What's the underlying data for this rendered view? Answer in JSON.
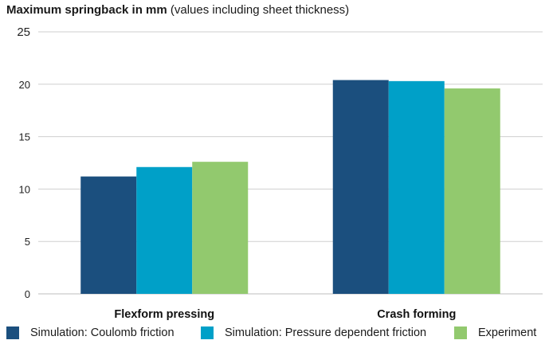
{
  "chart_data": {
    "type": "bar",
    "title": "Maximum springback in mm",
    "subtitle": "(values including sheet thickness)",
    "categories": [
      "Flexform pressing",
      "Crash forming"
    ],
    "series": [
      {
        "name": "Simulation: Coulomb friction",
        "color": "#1b4f7e",
        "values": [
          11.2,
          20.4
        ]
      },
      {
        "name": "Simulation: Pressure dependent friction",
        "color": "#00a0c8",
        "values": [
          12.1,
          20.3
        ]
      },
      {
        "name": "Experiment",
        "color": "#92c96e",
        "values": [
          12.6,
          19.6
        ]
      }
    ],
    "y_ticks": [
      0,
      5,
      10,
      15,
      20,
      25
    ],
    "ylim": [
      0,
      25
    ],
    "grid": true,
    "legend_position": "bottom"
  }
}
